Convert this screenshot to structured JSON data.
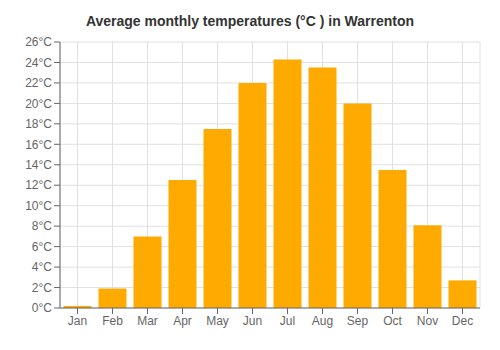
{
  "chart_data": {
    "type": "bar",
    "title": "Average monthly temperatures (°C ) in Warrenton",
    "categories": [
      "Jan",
      "Feb",
      "Mar",
      "Apr",
      "May",
      "Jun",
      "Jul",
      "Aug",
      "Sep",
      "Oct",
      "Nov",
      "Dec"
    ],
    "values": [
      0.2,
      1.9,
      7.0,
      12.5,
      17.5,
      22.0,
      24.3,
      23.5,
      20.0,
      13.5,
      8.1,
      2.7
    ],
    "color": "#FFAA00",
    "ylim": [
      0,
      26
    ],
    "yticks": [
      {
        "value": 0,
        "label": "0°C"
      },
      {
        "value": 2,
        "label": "2°C"
      },
      {
        "value": 4,
        "label": "4°C"
      },
      {
        "value": 6,
        "label": "6°C"
      },
      {
        "value": 8,
        "label": "8°C"
      },
      {
        "value": 10,
        "label": "10°C"
      },
      {
        "value": 12,
        "label": "12°C"
      },
      {
        "value": 14,
        "label": "14°C"
      },
      {
        "value": 16,
        "label": "16°C"
      },
      {
        "value": 18,
        "label": "18°C"
      },
      {
        "value": 20,
        "label": "20°C"
      },
      {
        "value": 22,
        "label": "22°C"
      },
      {
        "value": 24,
        "label": "24°C"
      },
      {
        "value": 26,
        "label": "26°C"
      }
    ],
    "grid": true
  }
}
